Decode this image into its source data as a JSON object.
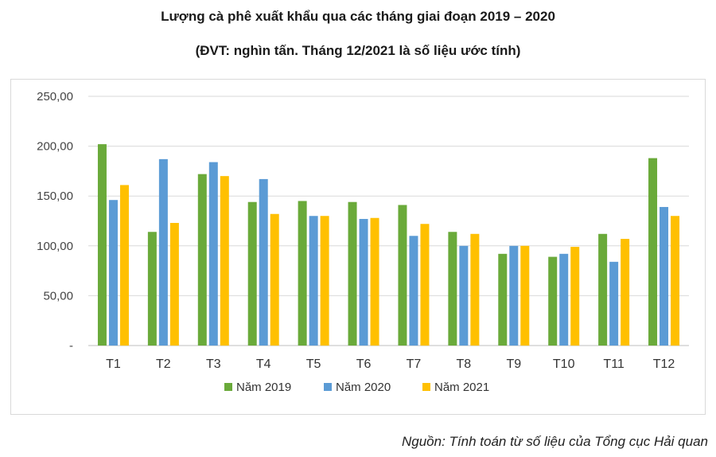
{
  "header": {
    "title": "Lượng cà phê xuất khẩu qua các tháng giai đoạn 2019 – 2020",
    "subtitle": "(ĐVT: nghìn tấn. Tháng 12/2021 là số liệu ước tính)"
  },
  "footer": {
    "source": "Nguồn: Tính toán từ số liệu của Tổng cục Hải quan"
  },
  "chart_data": {
    "type": "bar",
    "categories": [
      "T1",
      "T2",
      "T3",
      "T4",
      "T5",
      "T6",
      "T7",
      "T8",
      "T9",
      "T10",
      "T11",
      "T12"
    ],
    "series": [
      {
        "name": "Năm 2019",
        "color": "#6aaa3a",
        "values": [
          202,
          114,
          172,
          144,
          145,
          144,
          141,
          114,
          92,
          89,
          112,
          188
        ]
      },
      {
        "name": "Năm 2020",
        "color": "#5b9bd5",
        "values": [
          146,
          187,
          184,
          167,
          130,
          127,
          110,
          100,
          100,
          92,
          84,
          139
        ]
      },
      {
        "name": "Năm 2021",
        "color": "#ffc000",
        "values": [
          161,
          123,
          170,
          132,
          130,
          128,
          122,
          112,
          100,
          99,
          107,
          130
        ]
      }
    ],
    "ylim": [
      0,
      250
    ],
    "yticks": [
      0,
      50,
      100,
      150,
      200,
      250
    ],
    "ytick_labels": [
      "-",
      "50,00",
      "100,00",
      "150,00",
      "200,00",
      "250,00"
    ],
    "grid": true,
    "legend_position": "bottom"
  }
}
